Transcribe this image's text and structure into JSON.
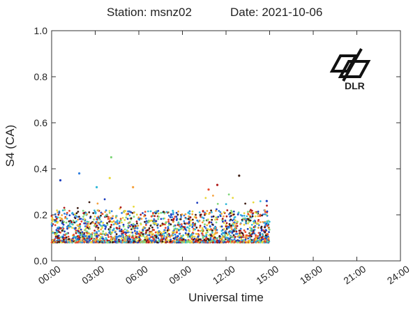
{
  "header": {
    "station": "Station: msnz02",
    "date": "Date: 2021-10-06"
  },
  "logo": {
    "text": "DLR",
    "name": "dlr-logo"
  },
  "chart_data": {
    "type": "scatter",
    "xlabel": "Universal time",
    "ylabel": "S4 (CA)",
    "xlim": [
      0,
      24
    ],
    "ylim": [
      0,
      1.0
    ],
    "x_ticks": [
      "00:00",
      "03:00",
      "06:00",
      "09:00",
      "12:00",
      "15:00",
      "18:00",
      "21:00",
      "24:00"
    ],
    "y_ticks": [
      "0.0",
      "0.2",
      "0.4",
      "0.6",
      "0.8",
      "1.0"
    ],
    "grid": false,
    "data_extent_hours": [
      0,
      15
    ],
    "typical_range": [
      0.06,
      0.2
    ],
    "outliers": [
      {
        "x": 0.6,
        "y": 0.35
      },
      {
        "x": 1.9,
        "y": 0.38
      },
      {
        "x": 3.1,
        "y": 0.32
      },
      {
        "x": 4.1,
        "y": 0.45
      },
      {
        "x": 4.0,
        "y": 0.36
      },
      {
        "x": 5.6,
        "y": 0.32
      },
      {
        "x": 10.8,
        "y": 0.31
      },
      {
        "x": 11.4,
        "y": 0.33
      },
      {
        "x": 12.9,
        "y": 0.37
      },
      {
        "x": 14.8,
        "y": 0.26
      }
    ],
    "series_colors": [
      "#1f3fbf",
      "#2f7fe0",
      "#2fb8d8",
      "#7fd67a",
      "#e8d83a",
      "#f5a03a",
      "#e8482a",
      "#b01818",
      "#3a1a10"
    ]
  }
}
